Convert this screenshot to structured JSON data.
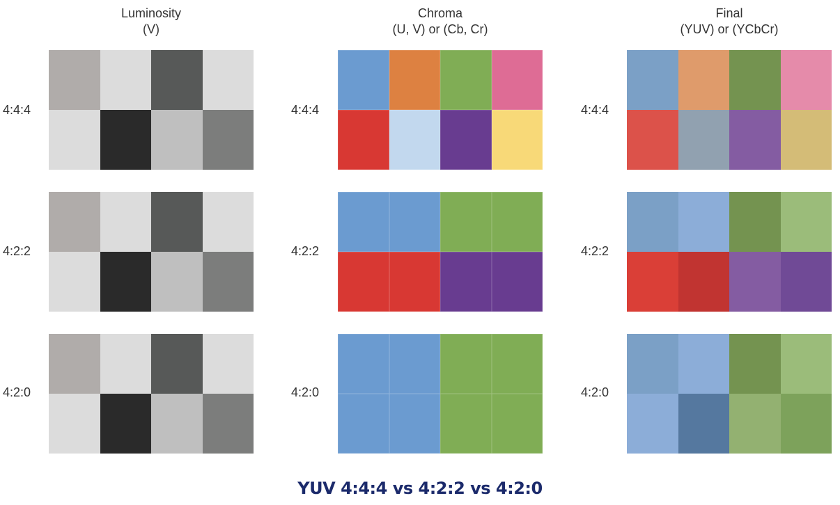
{
  "columns": [
    {
      "key": "luminosity",
      "title": "Luminosity",
      "subtitle": "(V)"
    },
    {
      "key": "chroma",
      "title": "Chroma",
      "subtitle": "(U, V) or (Cb, Cr)"
    },
    {
      "key": "final",
      "title": "Final",
      "subtitle": "(YUV) or (YCbCr)"
    }
  ],
  "rows": [
    "4:4:4",
    "4:2:2",
    "4:2:0"
  ],
  "grids": {
    "luminosity": [
      [
        "#b0acaa",
        "#dcdcdc",
        "#575958",
        "#dcdcdc",
        "#dcdcdc",
        "#2a2a2a",
        "#bfbfbf",
        "#7c7d7c"
      ],
      [
        "#b0acaa",
        "#dcdcdc",
        "#575958",
        "#dcdcdc",
        "#dcdcdc",
        "#2a2a2a",
        "#bfbfbf",
        "#7c7d7c"
      ],
      [
        "#b0acaa",
        "#dcdcdc",
        "#575958",
        "#dcdcdc",
        "#dcdcdc",
        "#2a2a2a",
        "#bfbfbf",
        "#7c7d7c"
      ]
    ],
    "chroma": [
      [
        "#6b9bd0",
        "#dd8141",
        "#80ad55",
        "#de6c95",
        "#d83833",
        "#c2d8ee",
        "#683c90",
        "#f8d978"
      ],
      [
        "#6b9bd0",
        "#6b9bd0",
        "#80ad55",
        "#80ad55",
        "#d83833",
        "#d83833",
        "#683c90",
        "#683c90"
      ],
      [
        "#6b9bd0",
        "#6b9bd0",
        "#80ad55",
        "#80ad55",
        "#6b9bd0",
        "#6b9bd0",
        "#80ad55",
        "#80ad55"
      ]
    ],
    "final": [
      [
        "#7ba0c6",
        "#df9b6b",
        "#749350",
        "#e58baa",
        "#dc524a",
        "#91a1b0",
        "#845ca2",
        "#d4bc77"
      ],
      [
        "#7ba0c6",
        "#8cadd8",
        "#749350",
        "#9bbc7a",
        "#da3f37",
        "#c13431",
        "#845ca2",
        "#704a96"
      ],
      [
        "#7ba0c6",
        "#8cadd8",
        "#749350",
        "#9bbc7a",
        "#8cadd8",
        "#55789f",
        "#93b171",
        "#7da25b"
      ]
    ]
  },
  "caption": "YUV 4:4:4 vs 4:2:2 vs 4:2:0"
}
